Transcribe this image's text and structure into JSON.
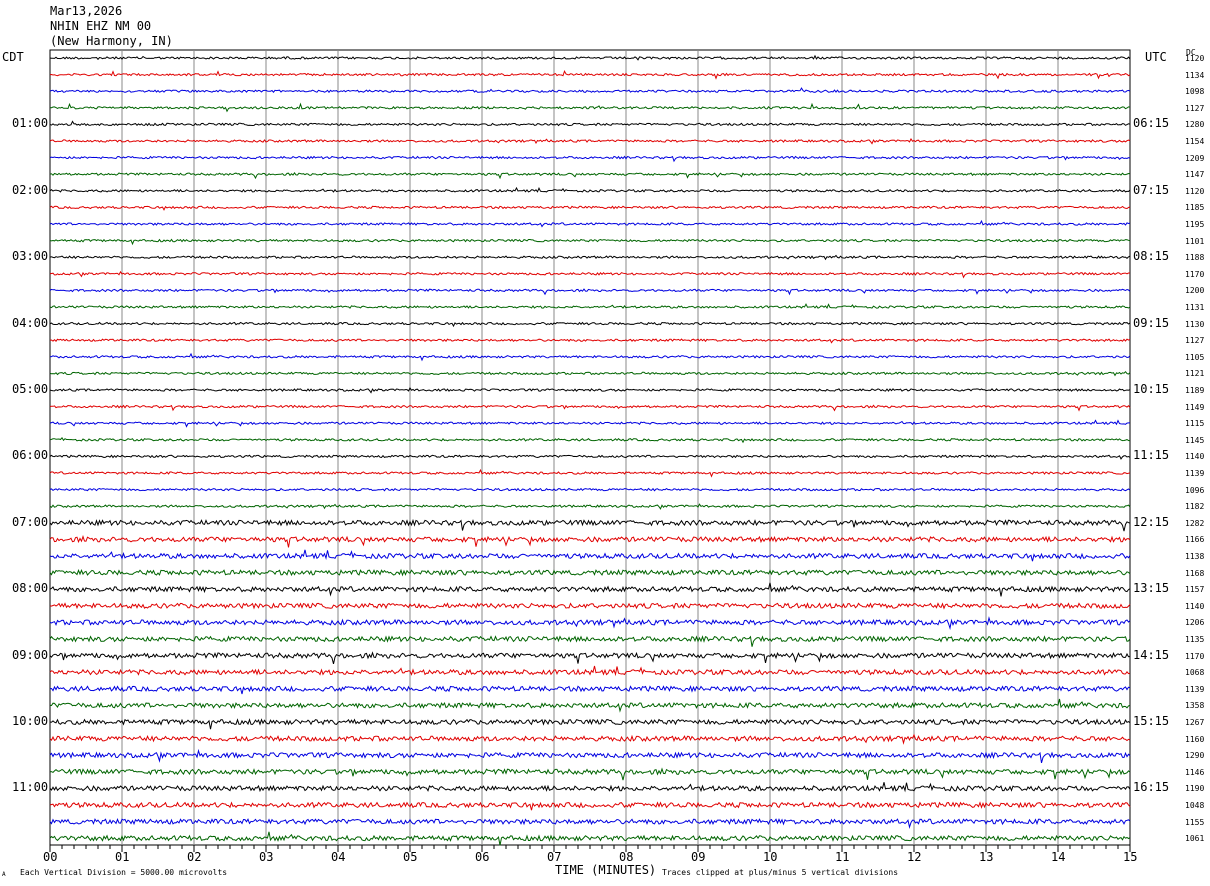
{
  "header": {
    "date": "Mar13,2026",
    "station": "NHIN EHZ NM 00",
    "location": "(New Harmony, IN)",
    "left_tz": "CDT",
    "right_tz": "UTC",
    "dc_label": "DC"
  },
  "footer": {
    "scale_note": "Each Vertical Division = 5000.00 microvolts",
    "clip_note": "Traces clipped at plus/minus 5 vertical divisions",
    "corner_mark": "A"
  },
  "chart_data": {
    "type": "line",
    "xlabel": "TIME (MINUTES)",
    "x_ticks": [
      "00",
      "01",
      "02",
      "03",
      "04",
      "05",
      "06",
      "07",
      "08",
      "09",
      "10",
      "11",
      "12",
      "13",
      "14",
      "15"
    ],
    "xlim": [
      0,
      15
    ],
    "trace_colors": [
      "#000000",
      "#e00000",
      "#0000e0",
      "#006400"
    ],
    "left_hour_labels": [
      "01:00",
      "02:00",
      "03:00",
      "04:00",
      "05:00",
      "06:00",
      "07:00",
      "08:00",
      "09:00",
      "10:00",
      "11:00"
    ],
    "right_hour_labels": [
      "06:15",
      "07:15",
      "08:15",
      "09:15",
      "10:15",
      "11:15",
      "12:15",
      "13:15",
      "14:15",
      "15:15",
      "16:15"
    ],
    "dc_offsets": [
      "1120",
      "1134",
      "1098",
      "1127",
      "1280",
      "1154",
      "1209",
      "1147",
      "1120",
      "1185",
      "1195",
      "1101",
      "1188",
      "1170",
      "1200",
      "1131",
      "1130",
      "1127",
      "1105",
      "1121",
      "1189",
      "1149",
      "1115",
      "1145",
      "1140",
      "1139",
      "1096",
      "1182",
      "1282",
      "1166",
      "1138",
      "1168",
      "1157",
      "1140",
      "1206",
      "1135",
      "1170",
      "1068",
      "1139",
      "1358",
      "1267",
      "1160",
      "1290",
      "1146",
      "1190",
      "1048",
      "1155",
      "1061"
    ]
  }
}
